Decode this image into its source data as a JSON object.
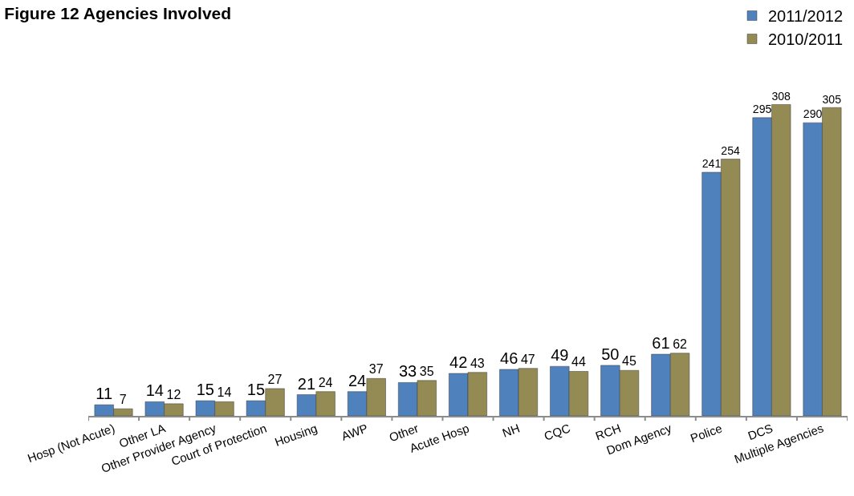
{
  "chart_data": {
    "type": "bar",
    "title": "Figure 12 Agencies Involved",
    "categories": [
      "Hosp (Not Acute)",
      "Other LA",
      "Other Provider Agency",
      "Court of Protection",
      "Housing",
      "AWP",
      "Other",
      "Acute Hosp",
      "NH",
      "CQC",
      "RCH",
      "Dom Agency",
      "Police",
      "DCS",
      "Multiple Agencies"
    ],
    "series": [
      {
        "name": "2011/2012",
        "color": "#4f81bd",
        "values": [
          11,
          14,
          15,
          15,
          21,
          24,
          33,
          42,
          46,
          49,
          50,
          61,
          241,
          295,
          290
        ]
      },
      {
        "name": "2010/2011",
        "color": "#948a54",
        "values": [
          7,
          12,
          14,
          27,
          24,
          37,
          35,
          43,
          47,
          44,
          45,
          62,
          254,
          308,
          305
        ]
      }
    ],
    "data_labels": true,
    "legend": "top right"
  }
}
